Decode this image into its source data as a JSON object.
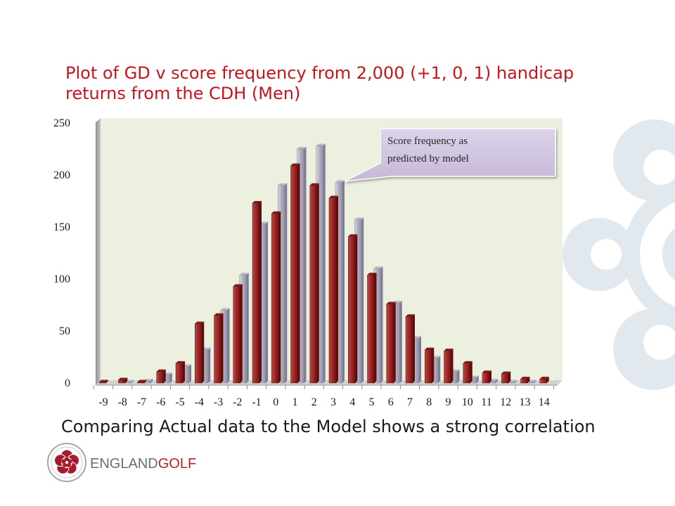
{
  "slide": {
    "caption": "Comparing Actual data to the Model shows a strong correlation",
    "brand": {
      "logo_icon": "england-golf-rose-icon",
      "name_part1": "ENGLAND",
      "name_part2": "GOLF",
      "colors": {
        "name_part1": "#6b6d70",
        "name_part2": "#b51f2e"
      }
    },
    "watermark_icon": "rose-watermark-icon",
    "colors": {
      "title": "#c4151c",
      "caption": "#1a1a1a",
      "background": "#ffffff",
      "plot_area": "#ebf1de",
      "callout": "#ccc0da"
    }
  },
  "chart_data": {
    "type": "bar",
    "3d": true,
    "title": "Plot of GD v score frequency from 2,000 (+1, 0, 1) handicap returns from the CDH (Men)",
    "categories": [
      "-9",
      "-8",
      "-7",
      "-6",
      "-5",
      "-4",
      "-3",
      "-2",
      "-1",
      "0",
      "1",
      "2",
      "3",
      "4",
      "5",
      "6",
      "7",
      "8",
      "9",
      "10",
      "11",
      "12",
      "13",
      "14"
    ],
    "series": [
      {
        "color": "#a02a2a",
        "values": [
          1,
          3,
          1,
          11,
          19,
          57,
          65,
          93,
          173,
          163,
          209,
          190,
          178,
          141,
          104,
          76,
          64,
          32,
          31,
          19,
          10,
          9,
          4,
          4
        ]
      },
      {
        "color": "#aeadbf",
        "values": [
          0,
          1,
          2,
          8,
          16,
          32,
          70,
          104,
          153,
          190,
          225,
          228,
          193,
          157,
          110,
          77,
          43,
          24,
          11,
          5,
          2,
          1,
          1,
          0
        ]
      }
    ],
    "ylim": [
      0,
      250
    ],
    "yticks": [
      0,
      50,
      100,
      150,
      200,
      250
    ],
    "grid": false,
    "legend": "none",
    "annotations": [
      {
        "text": "Score frequency as predicted by model"
      }
    ]
  }
}
